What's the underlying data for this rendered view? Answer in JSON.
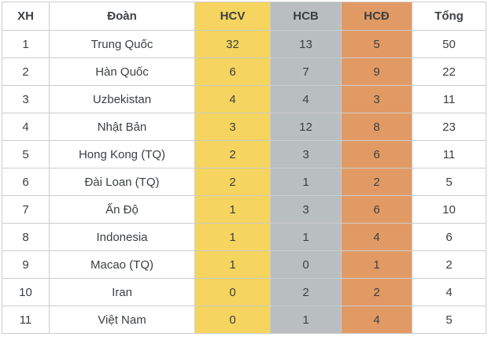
{
  "colors": {
    "gold": "#F5D55F",
    "silver": "#B9BEC0",
    "bronze": "#E29A64",
    "border": "#CCCCCC",
    "text": "#3C4043",
    "background": "#FFFFFF"
  },
  "chart_data": {
    "type": "table",
    "headers": {
      "rank": "XH",
      "team": "Đoàn",
      "gold": "HCV",
      "silver": "HCB",
      "bronze": "HCĐ",
      "total": "Tổng"
    },
    "rows": [
      {
        "rank": "1",
        "team": "Trung Quốc",
        "gold": "32",
        "silver": "13",
        "bronze": "5",
        "total": "50"
      },
      {
        "rank": "2",
        "team": "Hàn Quốc",
        "gold": "6",
        "silver": "7",
        "bronze": "9",
        "total": "22"
      },
      {
        "rank": "3",
        "team": "Uzbekistan",
        "gold": "4",
        "silver": "4",
        "bronze": "3",
        "total": "11"
      },
      {
        "rank": "4",
        "team": "Nhật Bản",
        "gold": "3",
        "silver": "12",
        "bronze": "8",
        "total": "23"
      },
      {
        "rank": "5",
        "team": "Hong Kong (TQ)",
        "gold": "2",
        "silver": "3",
        "bronze": "6",
        "total": "11"
      },
      {
        "rank": "6",
        "team": "Đài Loan (TQ)",
        "gold": "2",
        "silver": "1",
        "bronze": "2",
        "total": "5"
      },
      {
        "rank": "7",
        "team": "Ấn Độ",
        "gold": "1",
        "silver": "3",
        "bronze": "6",
        "total": "10"
      },
      {
        "rank": "8",
        "team": "Indonesia",
        "gold": "1",
        "silver": "1",
        "bronze": "4",
        "total": "6"
      },
      {
        "rank": "9",
        "team": "Macao (TQ)",
        "gold": "1",
        "silver": "0",
        "bronze": "1",
        "total": "2"
      },
      {
        "rank": "10",
        "team": "Iran",
        "gold": "0",
        "silver": "2",
        "bronze": "2",
        "total": "4"
      },
      {
        "rank": "11",
        "team": "Việt Nam",
        "gold": "0",
        "silver": "1",
        "bronze": "4",
        "total": "5"
      }
    ]
  }
}
